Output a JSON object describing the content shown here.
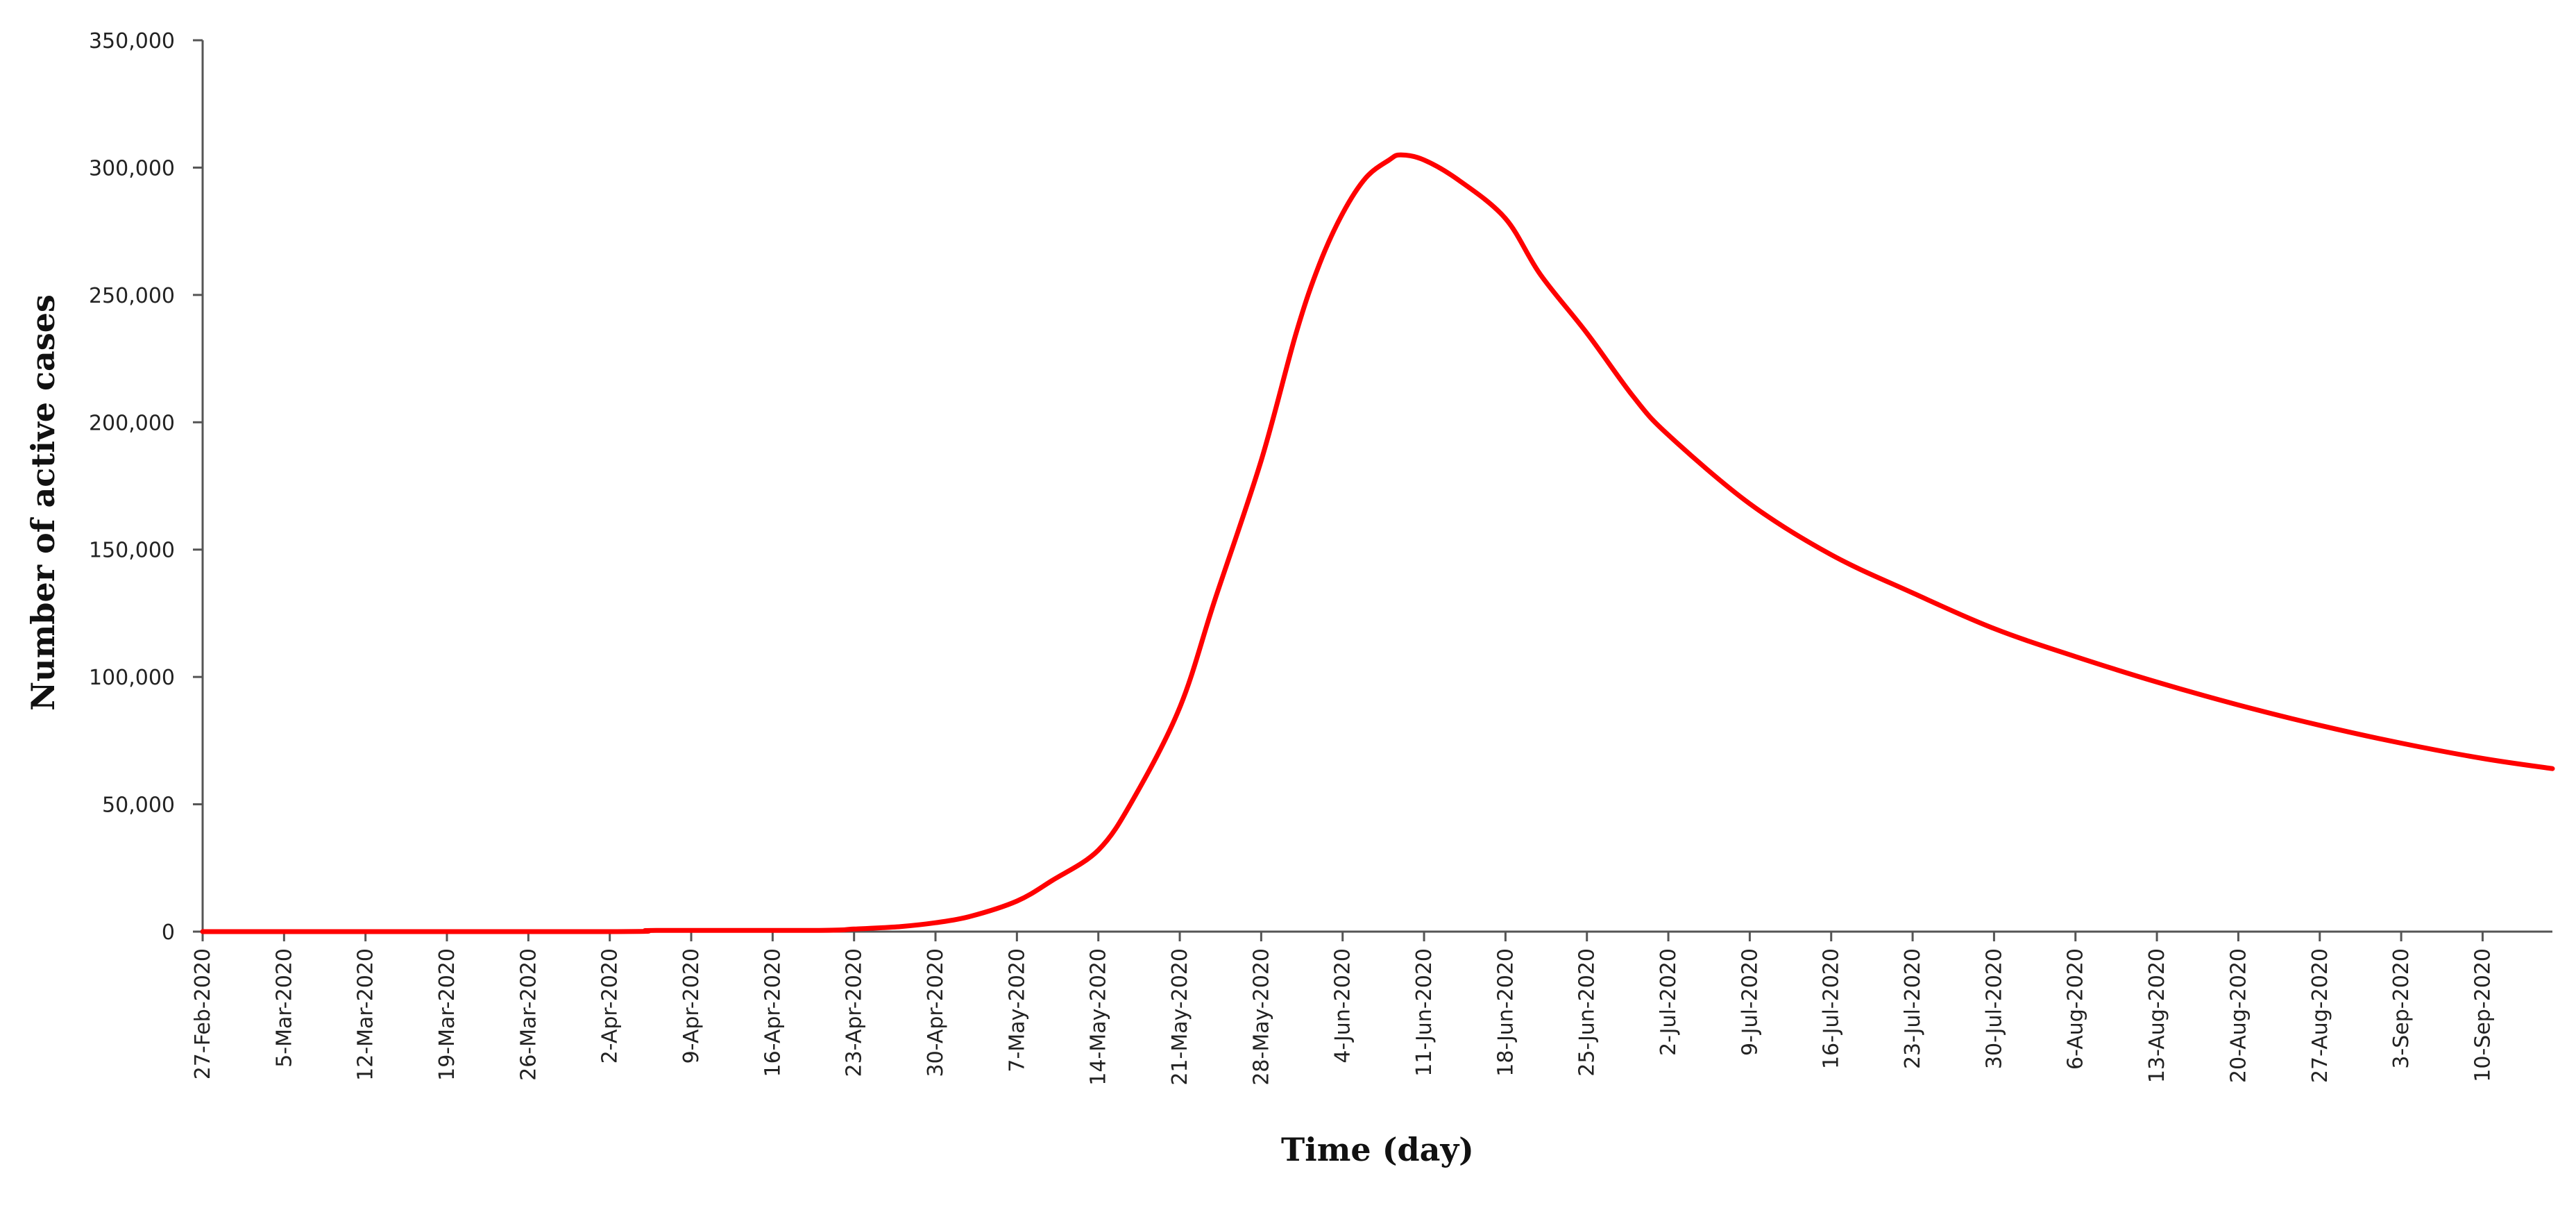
{
  "chart_data": {
    "type": "line",
    "xlabel": "Time (day)",
    "ylabel": "Number of active cases",
    "x_range": [
      "27-Feb-2020",
      "16-Sep-2020"
    ],
    "ylim": [
      0,
      350000
    ],
    "yticks": [
      0,
      50000,
      100000,
      150000,
      200000,
      250000,
      300000,
      350000
    ],
    "ytick_labels": [
      "0",
      "50,000",
      "100,000",
      "150,000",
      "200,000",
      "250,000",
      "300,000",
      "350,000"
    ],
    "xtick_labels": [
      "27-Feb-2020",
      "5-Mar-2020",
      "12-Mar-2020",
      "19-Mar-2020",
      "26-Mar-2020",
      "2-Apr-2020",
      "9-Apr-2020",
      "16-Apr-2020",
      "23-Apr-2020",
      "30-Apr-2020",
      "7-May-2020",
      "14-May-2020",
      "21-May-2020",
      "28-May-2020",
      "4-Jun-2020",
      "11-Jun-2020",
      "18-Jun-2020",
      "25-Jun-2020",
      "2-Jul-2020",
      "9-Jul-2020",
      "16-Jul-2020",
      "23-Jul-2020",
      "30-Jul-2020",
      "6-Aug-2020",
      "13-Aug-2020",
      "20-Aug-2020",
      "27-Aug-2020",
      "3-Sep-2020",
      "10-Sep-2020"
    ],
    "grid": false,
    "legend": "none",
    "line_color": "#ff0000",
    "series": [
      {
        "x": [
          "27-Feb-2020",
          "2-Apr-2020",
          "6-Apr-2020",
          "20-Apr-2020",
          "23-Apr-2020",
          "27-Apr-2020",
          "30-Apr-2020",
          "3-May-2020",
          "7-May-2020",
          "10-May-2020",
          "14-May-2020",
          "17-May-2020",
          "21-May-2020",
          "24-May-2020",
          "28-May-2020",
          "31-May-2020",
          "2-Jun-2020",
          "4-Jun-2020",
          "6-Jun-2020",
          "8-Jun-2020",
          "9-Jun-2020",
          "11-Jun-2020",
          "14-Jun-2020",
          "18-Jun-2020",
          "21-Jun-2020",
          "25-Jun-2020",
          "29-Jun-2020",
          "2-Jul-2020",
          "9-Jul-2020",
          "16-Jul-2020",
          "23-Jul-2020",
          "30-Jul-2020",
          "6-Aug-2020",
          "13-Aug-2020",
          "20-Aug-2020",
          "27-Aug-2020",
          "3-Sep-2020",
          "10-Sep-2020",
          "16-Sep-2020"
        ],
        "y": [
          0,
          0,
          500,
          500,
          1000,
          2000,
          3500,
          6000,
          12000,
          20000,
          32000,
          52000,
          88000,
          130000,
          185000,
          235000,
          262000,
          282000,
          296000,
          303000,
          305000,
          303000,
          295000,
          280000,
          258000,
          235000,
          210000,
          195000,
          168000,
          148000,
          133000,
          119000,
          108000,
          98000,
          89000,
          81000,
          74000,
          68000,
          64000
        ]
      }
    ]
  }
}
